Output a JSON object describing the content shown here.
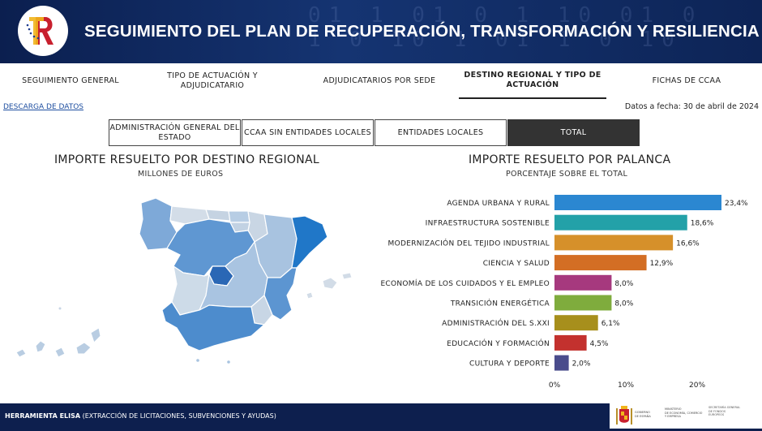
{
  "header": {
    "title": "SEGUIMIENTO DEL PLAN DE RECUPERACIÓN, TRANSFORMACIÓN Y RESILIENCIA",
    "logo_icon": "prtr-logo-icon",
    "colors": {
      "header_bg": "#0d2456",
      "footer_bg": "#0d1f4e"
    }
  },
  "nav": [
    {
      "label": "SEGUIMIENTO GENERAL",
      "active": false
    },
    {
      "label": "TIPO DE ACTUACIÓN Y ADJUDICATARIO",
      "active": false
    },
    {
      "label": "ADJUDICATARIOS POR SEDE",
      "active": false
    },
    {
      "label": "DESTINO REGIONAL Y TIPO DE ACTUACIÓN",
      "active": true
    },
    {
      "label": "FICHAS DE CCAA",
      "active": false
    }
  ],
  "download_label": "DESCARGA DE DATOS",
  "date_label": "Datos a fecha: 30 de abril de 2024",
  "filter_tabs": [
    {
      "label": "ADMINISTRACIÓN GENERAL DEL ESTADO",
      "active": false
    },
    {
      "label": "CCAA SIN ENTIDADES LOCALES",
      "active": false
    },
    {
      "label": "ENTIDADES LOCALES",
      "active": false
    },
    {
      "label": "TOTAL",
      "active": true
    }
  ],
  "map_section": {
    "title": "IMPORTE RESUELTO POR DESTINO REGIONAL",
    "subtitle": "MILLONES DE EUROS"
  },
  "chart_section": {
    "title": "IMPORTE RESUELTO POR PALANCA",
    "subtitle": "PORCENTAJE SOBRE EL TOTAL"
  },
  "chart_data": {
    "type": "bar",
    "orientation": "horizontal",
    "categories": [
      "AGENDA URBANA Y RURAL",
      "INFRAESTRUCTURA SOSTENIBLE",
      "MODERNIZACIÓN DEL TEJIDO INDUSTRIAL",
      "CIENCIA Y SALUD",
      "ECONOMÍA DE LOS CUIDADOS Y EL EMPLEO",
      "TRANSICIÓN ENERGÉTICA",
      "ADMINISTRACIÓN DEL S.XXI",
      "EDUCACIÓN Y FORMACIÓN",
      "CULTURA Y DEPORTE"
    ],
    "values": [
      23.4,
      18.6,
      16.6,
      12.9,
      8.0,
      8.0,
      6.1,
      4.5,
      2.0
    ],
    "value_labels": [
      "23,4%",
      "18,6%",
      "16,6%",
      "12,9%",
      "8,0%",
      "8,0%",
      "6,1%",
      "4,5%",
      "2,0%"
    ],
    "colors": [
      "#2b87d1",
      "#23a1a8",
      "#d6902a",
      "#d36e24",
      "#a6397e",
      "#7fac3d",
      "#a78f1c",
      "#c3312e",
      "#4a4c8c"
    ],
    "xlim": [
      0,
      23.4
    ],
    "xticks": [
      0,
      10,
      20
    ],
    "xtick_labels": [
      "0%",
      "10%",
      "20%"
    ],
    "grid": false,
    "legend": "none"
  },
  "footer": {
    "tool_bold": "HERRAMIENTA ELISA",
    "tool_rest": " (EXTRACCIÓN DE LICITACIONES, SUBVENCIONES Y AYUDAS)",
    "ministry_lines": [
      "GOBIERNO",
      "DE ESPAÑA"
    ],
    "ministry_name": [
      "MINISTERIO",
      "DE ECONOMÍA, COMERCIO",
      "Y EMPRESA"
    ],
    "secretary": [
      "SECRETARÍA GENERAL",
      "DE FONDOS",
      "EUROPEOS"
    ]
  }
}
